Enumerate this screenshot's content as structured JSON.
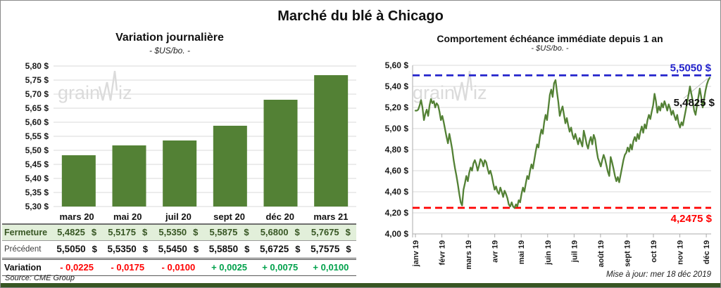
{
  "page": {
    "title": "Marché du blé à Chicago",
    "source": "Source: CME Group",
    "updated": "Mise à jour: mer 18 déc 2019"
  },
  "colors": {
    "series_green": "#538135",
    "fermeture_row_bg": "#E2EFDA",
    "fermeture_text": "#375623",
    "positive": "#00A14B",
    "negative": "#FF0000",
    "high_line_blue": "#2222CC",
    "low_line_red": "#FF0000",
    "grid": "#D9D9D9",
    "axis": "#ABABAB",
    "tick_text": "#1a1a1a",
    "watermark": "#DBDBDB",
    "bottom_bar": "#375623",
    "leader": "#C0C0C0"
  },
  "watermark": {
    "part1": "grain",
    "part2": "iz",
    "glyph": "zigzag-w"
  },
  "left_table": {
    "columns": [
      "mars 20",
      "mai 20",
      "juil 20",
      "sept 20",
      "déc 20",
      "mars 21"
    ],
    "currency": "$",
    "rows": {
      "fermeture": {
        "label": "Fermeture",
        "values": [
          "5,4825",
          "5,5175",
          "5,5350",
          "5,5875",
          "5,6800",
          "5,7675"
        ]
      },
      "precedent": {
        "label": "Précédent",
        "values": [
          "5,5050",
          "5,5350",
          "5,5450",
          "5,5850",
          "5,6725",
          "5,7575"
        ]
      },
      "variation": {
        "label": "Variation",
        "values": [
          "- 0,0225",
          "- 0,0175",
          "- 0,0100",
          "+ 0,0025",
          "+ 0,0075",
          "+ 0,0100"
        ]
      }
    }
  },
  "chart_data": [
    {
      "type": "bar",
      "title": "Variation journalière",
      "subtitle": "- $US/bo. -",
      "categories": [
        "mars 20",
        "mai 20",
        "juil 20",
        "sept 20",
        "déc 20",
        "mars 21"
      ],
      "values": [
        5.4825,
        5.5175,
        5.535,
        5.5875,
        5.68,
        5.7675
      ],
      "ylim": [
        5.3,
        5.8
      ],
      "ytick_step": 0.05,
      "ytick_labels": [
        "5,80 $",
        "5,75 $",
        "5,70 $",
        "5,65 $",
        "5,60 $",
        "5,55 $",
        "5,50 $",
        "5,45 $",
        "5,40 $",
        "5,35 $",
        "5,30 $"
      ],
      "grid": true,
      "legend": "none"
    },
    {
      "type": "line",
      "title": "Comportement échéance immédiate depuis 1 an",
      "subtitle": "- $US/bo. -",
      "xlabel": "",
      "ylabel": "",
      "ylim": [
        4.0,
        5.6
      ],
      "ytick_step": 0.2,
      "ytick_labels": [
        "5,60 $",
        "5,40 $",
        "5,20 $",
        "5,00 $",
        "4,80 $",
        "4,60 $",
        "4,40 $",
        "4,20 $",
        "4,00 $"
      ],
      "x_tick_labels": [
        "janv 19",
        "févr 19",
        "mars 19",
        "avr 19",
        "mai 19",
        "juin 19",
        "juil 19",
        "août 19",
        "sept 19",
        "oct 19",
        "nov 19",
        "déc 19"
      ],
      "x_months_span": 11.13,
      "grid": true,
      "high_line": {
        "value": 5.505,
        "label": "5,5050 $"
      },
      "low_line": {
        "value": 4.2475,
        "label": "4,2475 $"
      },
      "last_point_label": "5,4825 $",
      "last_point_value": 5.4825,
      "series": [
        {
          "name": "échéance immédiate",
          "y": [
            5.17,
            5.17,
            5.18,
            5.22,
            5.27,
            5.2,
            5.08,
            5.14,
            5.18,
            5.12,
            5.22,
            5.28,
            5.24,
            5.26,
            5.2,
            5.24,
            5.22,
            5.16,
            5.08,
            5.12,
            5.06,
            4.99,
            4.92,
            4.86,
            4.95,
            4.88,
            4.8,
            4.7,
            4.62,
            4.55,
            4.47,
            4.38,
            4.3,
            4.27,
            4.42,
            4.48,
            4.55,
            4.5,
            4.58,
            4.63,
            4.6,
            4.67,
            4.7,
            4.66,
            4.6,
            4.65,
            4.71,
            4.69,
            4.64,
            4.7,
            4.68,
            4.62,
            4.57,
            4.6,
            4.55,
            4.48,
            4.42,
            4.45,
            4.4,
            4.38,
            4.44,
            4.4,
            4.35,
            4.41,
            4.38,
            4.34,
            4.28,
            4.26,
            4.3,
            4.26,
            4.2475,
            4.28,
            4.26,
            4.32,
            4.3,
            4.38,
            4.44,
            4.4,
            4.48,
            4.55,
            4.52,
            4.6,
            4.66,
            4.62,
            4.7,
            4.78,
            4.85,
            4.82,
            4.92,
            4.99,
            4.95,
            5.06,
            5.13,
            5.08,
            5.2,
            5.32,
            5.37,
            5.3,
            5.43,
            5.46,
            5.35,
            5.25,
            5.12,
            5.17,
            5.21,
            5.13,
            5.05,
            5.1,
            5.03,
            4.97,
            5.01,
            4.94,
            4.9,
            4.95,
            4.9,
            4.85,
            4.91,
            4.87,
            4.83,
            4.98,
            4.92,
            4.85,
            4.81,
            4.88,
            4.92,
            4.85,
            4.94,
            4.9,
            4.8,
            4.72,
            4.68,
            4.64,
            4.7,
            4.75,
            4.71,
            4.65,
            4.59,
            4.55,
            4.73,
            4.68,
            4.62,
            4.55,
            4.5,
            4.54,
            4.49,
            4.56,
            4.63,
            4.7,
            4.75,
            4.77,
            4.82,
            4.78,
            4.85,
            4.8,
            4.88,
            4.92,
            4.88,
            4.95,
            4.9,
            4.97,
            5.02,
            4.96,
            5.04,
            5.0,
            5.08,
            5.13,
            5.09,
            5.16,
            5.22,
            5.33,
            5.26,
            5.15,
            5.21,
            5.17,
            5.24,
            5.2,
            5.26,
            5.22,
            5.17,
            5.23,
            5.19,
            5.13,
            5.17,
            5.12,
            5.08,
            5.13,
            5.05,
            5.01,
            5.06,
            5.03,
            5.1,
            5.17,
            5.24,
            5.32,
            5.4,
            5.33,
            5.26,
            5.17,
            5.13,
            5.22,
            5.3,
            5.38,
            5.3,
            5.2,
            5.28,
            5.36,
            5.42,
            5.46,
            5.4825
          ]
        }
      ]
    }
  ]
}
